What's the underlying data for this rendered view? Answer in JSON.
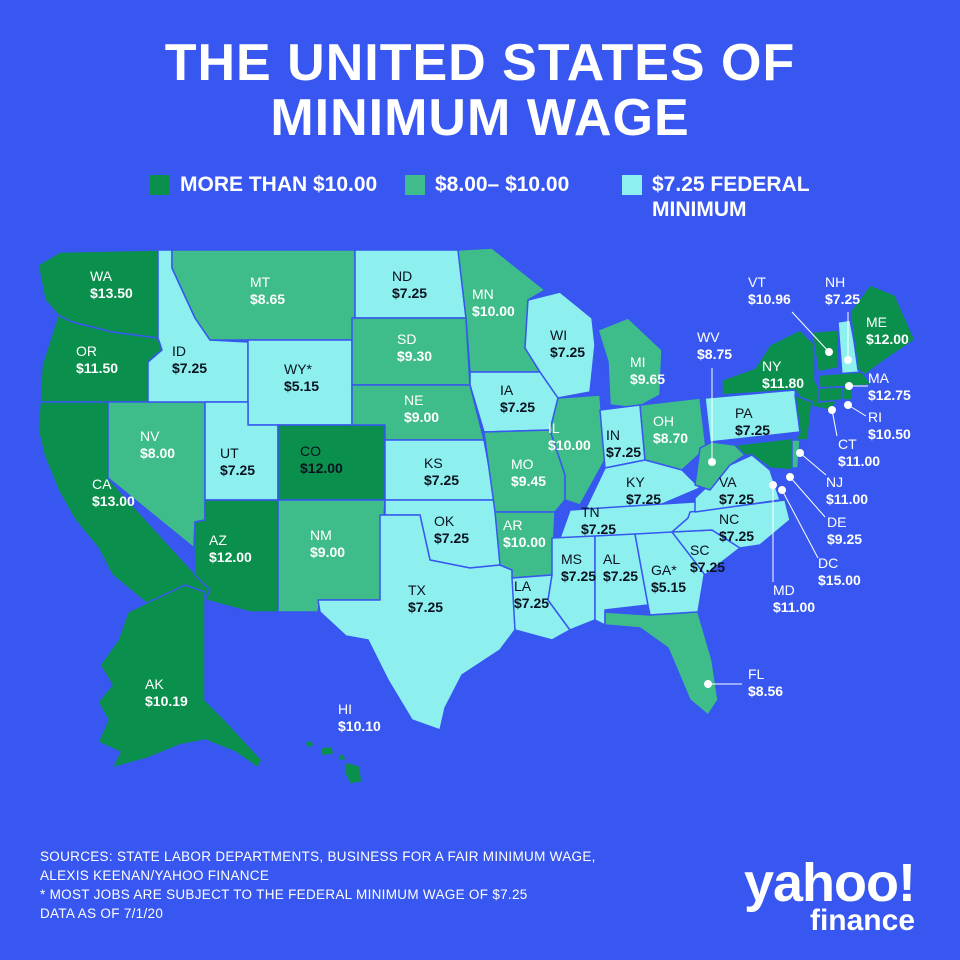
{
  "title": {
    "line1": "THE UNITED STATES OF",
    "line2": "MINIMUM WAGE"
  },
  "legend": [
    {
      "label": "MORE THAN $10.00",
      "color": "#0a8f4c"
    },
    {
      "label": "$8.00– $10.00",
      "color": "#3ebd8a"
    },
    {
      "label": "$7.25 FEDERAL\nMINIMUM",
      "color": "#8df0ee"
    }
  ],
  "colors": {
    "background": "#3757f0",
    "high": "#0a8f4c",
    "mid": "#3ebd8a",
    "federal": "#8df0ee"
  },
  "states": [
    {
      "abbr": "WA",
      "value": "$13.50"
    },
    {
      "abbr": "OR",
      "value": "$11.50"
    },
    {
      "abbr": "CA",
      "value": "$13.00"
    },
    {
      "abbr": "ID",
      "value": "$7.25"
    },
    {
      "abbr": "NV",
      "value": "$8.00"
    },
    {
      "abbr": "MT",
      "value": "$8.65"
    },
    {
      "abbr": "WY*",
      "value": "$5.15"
    },
    {
      "abbr": "UT",
      "value": "$7.25"
    },
    {
      "abbr": "CO",
      "value": "$12.00"
    },
    {
      "abbr": "AZ",
      "value": "$12.00"
    },
    {
      "abbr": "NM",
      "value": "$9.00"
    },
    {
      "abbr": "ND",
      "value": "$7.25"
    },
    {
      "abbr": "SD",
      "value": "$9.30"
    },
    {
      "abbr": "NE",
      "value": "$9.00"
    },
    {
      "abbr": "KS",
      "value": "$7.25"
    },
    {
      "abbr": "OK",
      "value": "$7.25"
    },
    {
      "abbr": "TX",
      "value": "$7.25"
    },
    {
      "abbr": "MN",
      "value": "$10.00"
    },
    {
      "abbr": "IA",
      "value": "$7.25"
    },
    {
      "abbr": "MO",
      "value": "$9.45"
    },
    {
      "abbr": "AR",
      "value": "$10.00"
    },
    {
      "abbr": "LA",
      "value": "$7.25"
    },
    {
      "abbr": "WI",
      "value": "$7.25"
    },
    {
      "abbr": "IL",
      "value": "$10.00"
    },
    {
      "abbr": "MI",
      "value": "$9.65"
    },
    {
      "abbr": "IN",
      "value": "$7.25"
    },
    {
      "abbr": "OH",
      "value": "$8.70"
    },
    {
      "abbr": "KY",
      "value": "$7.25"
    },
    {
      "abbr": "TN",
      "value": "$7.25"
    },
    {
      "abbr": "MS",
      "value": "$7.25"
    },
    {
      "abbr": "AL",
      "value": "$7.25"
    },
    {
      "abbr": "GA*",
      "value": "$5.15"
    },
    {
      "abbr": "FL",
      "value": "$8.56"
    },
    {
      "abbr": "SC",
      "value": "$7.25"
    },
    {
      "abbr": "NC",
      "value": "$7.25"
    },
    {
      "abbr": "VA",
      "value": "$7.25"
    },
    {
      "abbr": "WV",
      "value": "$8.75"
    },
    {
      "abbr": "PA",
      "value": "$7.25"
    },
    {
      "abbr": "NY",
      "value": "$11.80"
    },
    {
      "abbr": "VT",
      "value": "$10.96"
    },
    {
      "abbr": "NH",
      "value": "$7.25"
    },
    {
      "abbr": "ME",
      "value": "$12.00"
    },
    {
      "abbr": "MA",
      "value": "$12.75"
    },
    {
      "abbr": "RI",
      "value": "$10.50"
    },
    {
      "abbr": "CT",
      "value": "$11.00"
    },
    {
      "abbr": "NJ",
      "value": "$11.00"
    },
    {
      "abbr": "DE",
      "value": "$9.25"
    },
    {
      "abbr": "DC",
      "value": "$15.00"
    },
    {
      "abbr": "MD",
      "value": "$11.00"
    },
    {
      "abbr": "AK",
      "value": "$10.19"
    },
    {
      "abbr": "HI",
      "value": "$10.10"
    }
  ],
  "sources": {
    "line1": "SOURCES: STATE LABOR DEPARTMENTS, BUSINESS FOR A FAIR MINIMUM WAGE,",
    "line2": "ALEXIS KEENAN/YAHOO FINANCE",
    "line3": "* MOST JOBS ARE SUBJECT TO THE FEDERAL MINIMUM WAGE OF $7.25",
    "line4": "DATA AS OF 7/1/20"
  },
  "logo": {
    "yahoo": "yahoo!",
    "finance": "finance"
  }
}
